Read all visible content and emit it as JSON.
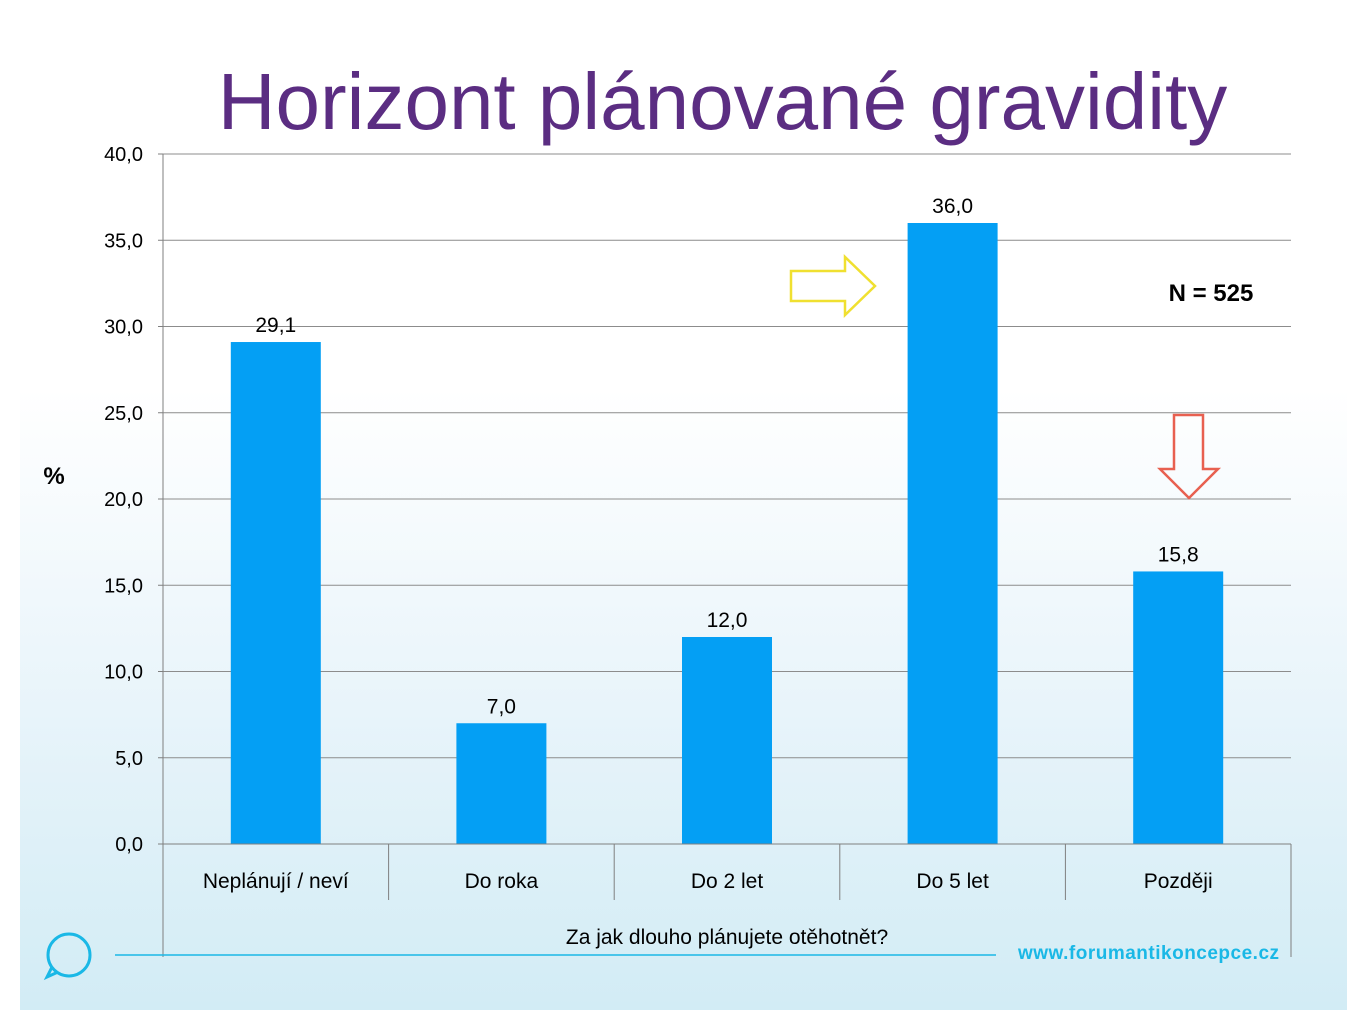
{
  "title": "Horizont plánované gravidity",
  "n_label": "N = 525",
  "footer": {
    "url": "www.forumantikoncepce.cz"
  },
  "colors": {
    "bar": "#049ff4",
    "title": "#5b2d82",
    "arrow_up": "#f0e030",
    "arrow_down": "#e86050",
    "accent": "#1ab8e6"
  },
  "chart_data": {
    "type": "bar",
    "title": "Horizont plánované gravidity",
    "xlabel": "Za jak dlouho plánujete otěhotnět?",
    "ylabel": "%",
    "ylim": [
      0,
      40
    ],
    "yticks": [
      0,
      5,
      10,
      15,
      20,
      25,
      30,
      35,
      40
    ],
    "ytick_labels": [
      "0,0",
      "5,0",
      "10,0",
      "15,0",
      "20,0",
      "25,0",
      "30,0",
      "35,0",
      "40,0"
    ],
    "categories": [
      "Neplánují / neví",
      "Do roka",
      "Do 2 let",
      "Do 5 let",
      "Později"
    ],
    "values": [
      29.1,
      7.0,
      12.0,
      36.0,
      15.8
    ],
    "value_labels": [
      "29,1",
      "7,0",
      "12,0",
      "36,0",
      "15,8"
    ],
    "grid": true,
    "legend": "none",
    "annotations": [
      "N = 525",
      "right arrow pointing at Do 5 let",
      "down arrow above Později"
    ]
  }
}
